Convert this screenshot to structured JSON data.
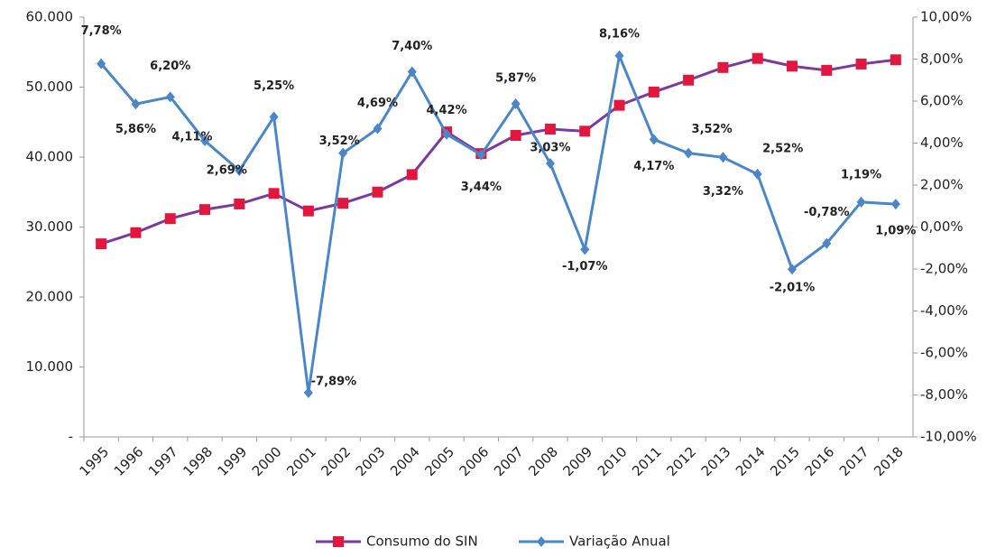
{
  "chart_data": {
    "type": "line",
    "categories": [
      "1995",
      "1996",
      "1997",
      "1998",
      "1999",
      "2000",
      "2001",
      "2002",
      "2003",
      "2004",
      "2005",
      "2006",
      "2007",
      "2008",
      "2009",
      "2010",
      "2011",
      "2012",
      "2013",
      "2014",
      "2015",
      "2016",
      "2017",
      "2018"
    ],
    "series": [
      {
        "name": "Consumo do SIN",
        "color": "#7b3aa0",
        "marker_color": "#e3173e",
        "values": [
          27600,
          29200,
          31200,
          32500,
          33300,
          34800,
          32300,
          33400,
          35000,
          37500,
          43600,
          40500,
          43100,
          44000,
          43700,
          47400,
          49300,
          51000,
          52800,
          54100,
          53000,
          52400,
          53300,
          53900
        ]
      },
      {
        "name": "Variação Anual",
        "color": "#4a86c8",
        "axis": "y2",
        "values": [
          7.78,
          5.86,
          6.2,
          4.11,
          2.69,
          5.25,
          -7.89,
          3.52,
          4.69,
          7.4,
          4.42,
          3.44,
          5.87,
          3.03,
          -1.07,
          8.16,
          4.17,
          3.52,
          3.32,
          2.52,
          -2.01,
          -0.78,
          1.19,
          1.09
        ],
        "value_labels": [
          "7,78%",
          "5,86%",
          "6,20%",
          "4,11%",
          "2,69%",
          "5,25%",
          "-7,89%",
          "3,52%",
          "4,69%",
          "7,40%",
          "4,42%",
          "3,44%",
          "5,87%",
          "3,03%",
          "-1,07%",
          "8,16%",
          "4,17%",
          "3,52%",
          "3,32%",
          "2,52%",
          "-2,01%",
          "-0,78%",
          "1,19%",
          "1,09%"
        ]
      }
    ],
    "ylim": [
      0,
      60000
    ],
    "yticks": [
      {
        "value": 0,
        "label": "-"
      },
      {
        "value": 10000,
        "label": "10.000"
      },
      {
        "value": 20000,
        "label": "20.000"
      },
      {
        "value": 30000,
        "label": "30.000"
      },
      {
        "value": 40000,
        "label": "40.000"
      },
      {
        "value": 50000,
        "label": "50.000"
      },
      {
        "value": 60000,
        "label": "60.000"
      }
    ],
    "y2lim": [
      -10,
      10
    ],
    "y2ticks": [
      {
        "value": -10,
        "label": "-10,00%"
      },
      {
        "value": -8,
        "label": "-8,00%"
      },
      {
        "value": -6,
        "label": "-6,00%"
      },
      {
        "value": -4,
        "label": "-4,00%"
      },
      {
        "value": -2,
        "label": "-2,00%"
      },
      {
        "value": 0,
        "label": "0,00%"
      },
      {
        "value": 2,
        "label": "2,00%"
      },
      {
        "value": 4,
        "label": "4,00%"
      },
      {
        "value": 6,
        "label": "6,00%"
      },
      {
        "value": 8,
        "label": "8,00%"
      },
      {
        "value": 10,
        "label": "10,00%"
      }
    ],
    "legend": "bottom"
  }
}
